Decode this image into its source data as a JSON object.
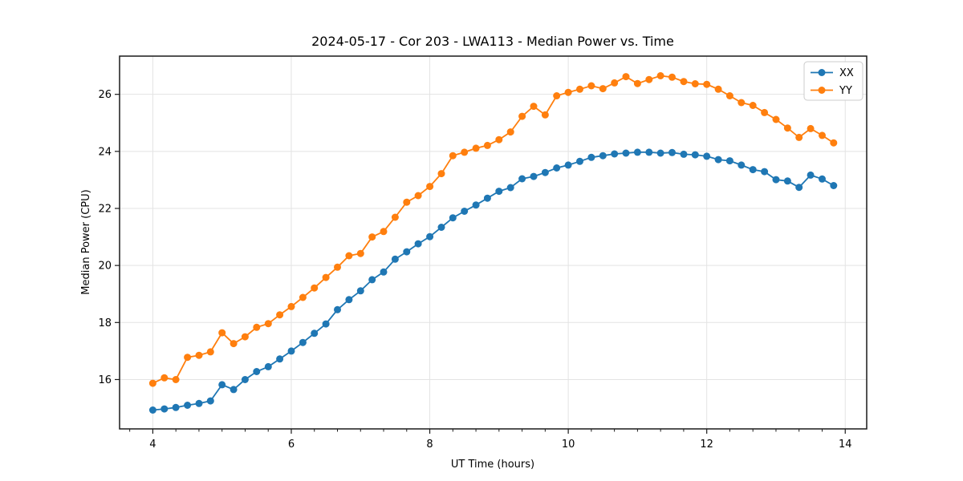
{
  "figure": {
    "background": "#ffffff",
    "title": "2024-05-17 - Cor 203 - LWA113 - Median Power vs. Time"
  },
  "chart_data": {
    "type": "line",
    "title": "2024-05-17 - Cor 203 - LWA113 - Median Power vs. Time",
    "xlabel": "UT Time (hours)",
    "ylabel": "Median Power (CPU)",
    "xlim": [
      3.52,
      14.31
    ],
    "ylim": [
      14.27,
      27.34
    ],
    "x_major_ticks": [
      4,
      6,
      8,
      10,
      12,
      14
    ],
    "x_minor_tick_step": 0.33333,
    "y_major_ticks": [
      16,
      18,
      20,
      22,
      24,
      26
    ],
    "grid": true,
    "grid_color": "#e3e3e3",
    "spine_color": "#1a1a1a",
    "legend_position": "upper right",
    "marker": "circle",
    "x": [
      4.0,
      4.167,
      4.333,
      4.5,
      4.667,
      4.833,
      5.0,
      5.167,
      5.333,
      5.5,
      5.667,
      5.833,
      6.0,
      6.167,
      6.333,
      6.5,
      6.667,
      6.833,
      7.0,
      7.167,
      7.333,
      7.5,
      7.667,
      7.833,
      8.0,
      8.167,
      8.333,
      8.5,
      8.667,
      8.833,
      9.0,
      9.167,
      9.333,
      9.5,
      9.667,
      9.833,
      10.0,
      10.167,
      10.333,
      10.5,
      10.667,
      10.833,
      11.0,
      11.167,
      11.333,
      11.5,
      11.667,
      11.833,
      12.0,
      12.167,
      12.333,
      12.5,
      12.667,
      12.833,
      13.0,
      13.167,
      13.333,
      13.5,
      13.667,
      13.833
    ],
    "series": [
      {
        "name": "XX",
        "color": "#1f77b4",
        "values": [
          14.93,
          14.97,
          15.02,
          15.1,
          15.16,
          15.25,
          15.82,
          15.65,
          16.0,
          16.28,
          16.45,
          16.72,
          17.0,
          17.3,
          17.62,
          17.95,
          18.45,
          18.8,
          19.11,
          19.5,
          19.77,
          20.22,
          20.48,
          20.76,
          21.01,
          21.34,
          21.67,
          21.9,
          22.12,
          22.36,
          22.6,
          22.73,
          23.04,
          23.12,
          23.26,
          23.42,
          23.52,
          23.65,
          23.79,
          23.85,
          23.91,
          23.94,
          23.97,
          23.97,
          23.94,
          23.96,
          23.9,
          23.88,
          23.83,
          23.71,
          23.67,
          23.52,
          23.36,
          23.29,
          23.01,
          22.96,
          22.74,
          23.17,
          23.03,
          22.8
        ]
      },
      {
        "name": "YY",
        "color": "#ff7f0e",
        "values": [
          15.87,
          16.06,
          16.0,
          16.78,
          16.85,
          16.97,
          17.64,
          17.26,
          17.5,
          17.83,
          17.96,
          18.27,
          18.56,
          18.88,
          19.21,
          19.58,
          19.94,
          20.34,
          20.42,
          21.0,
          21.19,
          21.69,
          22.22,
          22.45,
          22.77,
          23.22,
          23.85,
          23.97,
          24.11,
          24.21,
          24.41,
          24.68,
          25.23,
          25.58,
          25.28,
          25.95,
          26.07,
          26.18,
          26.3,
          26.2,
          26.4,
          26.62,
          26.38,
          26.52,
          26.65,
          26.6,
          26.45,
          26.37,
          26.35,
          26.18,
          25.95,
          25.71,
          25.61,
          25.36,
          25.12,
          24.82,
          24.49,
          24.8,
          24.56,
          24.3
        ]
      }
    ]
  }
}
